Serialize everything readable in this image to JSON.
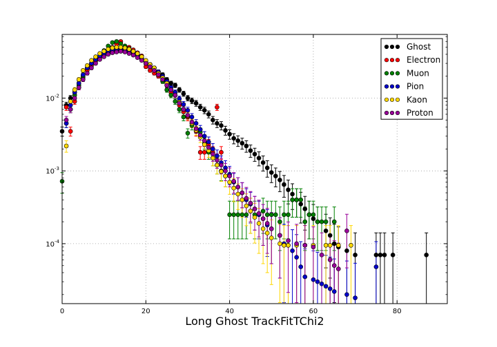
{
  "chart_data": {
    "type": "scatter",
    "title": "",
    "xlabel": "Long Ghost TrackFitTChi2",
    "ylabel": "",
    "xlim": [
      0,
      92
    ],
    "ylim": [
      1.5e-05,
      0.075
    ],
    "yscale": "log",
    "grid": true,
    "legend_position": "top-right",
    "x_ticks": [
      {
        "value": 0,
        "label": "0"
      },
      {
        "value": 20,
        "label": "20"
      },
      {
        "value": 40,
        "label": "40"
      },
      {
        "value": 60,
        "label": "60"
      },
      {
        "value": 80,
        "label": "80"
      }
    ],
    "y_ticks": [
      {
        "value": 0.0001,
        "base": "10",
        "exp": "-4"
      },
      {
        "value": 0.001,
        "base": "10",
        "exp": "-3"
      },
      {
        "value": 0.01,
        "base": "10",
        "exp": "-2"
      }
    ],
    "series": [
      {
        "name": "Ghost",
        "color": "#000000",
        "x": [
          0,
          1,
          2,
          3,
          4,
          5,
          6,
          7,
          8,
          9,
          10,
          11,
          12,
          13,
          14,
          15,
          16,
          17,
          18,
          19,
          20,
          21,
          22,
          23,
          24,
          25,
          26,
          27,
          28,
          29,
          30,
          31,
          32,
          33,
          34,
          35,
          36,
          37,
          38,
          39,
          40,
          41,
          42,
          43,
          44,
          45,
          46,
          47,
          48,
          49,
          50,
          51,
          52,
          53,
          54,
          55,
          56,
          57,
          58,
          59,
          60,
          61,
          63,
          64,
          65,
          66,
          68,
          70,
          75,
          76,
          77,
          79,
          87
        ],
        "y": [
          0.0035,
          0.008,
          0.01,
          0.012,
          0.016,
          0.02,
          0.025,
          0.028,
          0.033,
          0.037,
          0.04,
          0.043,
          0.045,
          0.046,
          0.047,
          0.046,
          0.044,
          0.042,
          0.039,
          0.035,
          0.032,
          0.029,
          0.026,
          0.023,
          0.021,
          0.018,
          0.016,
          0.015,
          0.013,
          0.0115,
          0.01,
          0.0092,
          0.0085,
          0.0075,
          0.0068,
          0.006,
          0.005,
          0.0045,
          0.0042,
          0.0036,
          0.0032,
          0.0028,
          0.0026,
          0.0024,
          0.0022,
          0.0019,
          0.0017,
          0.0015,
          0.0013,
          0.0011,
          0.00095,
          0.00085,
          0.00075,
          0.00065,
          0.00055,
          0.00048,
          0.0004,
          0.00035,
          0.0003,
          0.00025,
          0.00022,
          0.0002,
          0.00015,
          0.00013,
          0.0001,
          9e-05,
          8e-05,
          7e-05,
          7e-05,
          7e-05,
          7e-05,
          7e-05,
          7e-05
        ]
      },
      {
        "name": "Electron",
        "color": "#ff0000",
        "x": [
          1,
          2,
          3,
          4,
          5,
          6,
          7,
          8,
          9,
          10,
          11,
          12,
          13,
          14,
          15,
          16,
          17,
          18,
          19,
          20,
          21,
          22,
          23,
          24,
          25,
          26,
          27,
          28,
          29,
          30,
          31,
          32,
          33,
          34,
          35,
          36,
          37,
          38
        ],
        "y": [
          0.0075,
          0.0035,
          0.009,
          0.014,
          0.019,
          0.024,
          0.028,
          0.032,
          0.036,
          0.039,
          0.044,
          0.05,
          0.055,
          0.06,
          0.052,
          0.05,
          0.046,
          0.042,
          0.038,
          0.027,
          0.024,
          0.022,
          0.02,
          0.018,
          0.015,
          0.012,
          0.011,
          0.008,
          0.0065,
          0.0055,
          0.0045,
          0.0035,
          0.0018,
          0.0018,
          0.0023,
          0.0018,
          0.0075,
          0.0018
        ]
      },
      {
        "name": "Muon",
        "color": "#008000",
        "x": [
          0,
          1,
          2,
          3,
          4,
          5,
          6,
          7,
          8,
          9,
          10,
          11,
          12,
          13,
          14,
          15,
          16,
          17,
          18,
          19,
          20,
          21,
          22,
          23,
          24,
          25,
          26,
          27,
          28,
          29,
          30,
          31,
          32,
          33,
          34,
          35,
          36,
          37,
          38,
          39,
          40,
          41,
          42,
          43,
          44,
          45,
          46,
          47,
          48,
          49,
          50,
          51,
          52,
          53,
          54,
          55,
          56,
          57,
          58,
          59,
          60,
          61,
          62,
          63,
          65
        ],
        "y": [
          0.00072,
          0.0045,
          0.007,
          0.011,
          0.015,
          0.02,
          0.026,
          0.03,
          0.035,
          0.04,
          0.045,
          0.052,
          0.058,
          0.06,
          0.056,
          0.052,
          0.048,
          0.044,
          0.04,
          0.036,
          0.03,
          0.027,
          0.024,
          0.021,
          0.017,
          0.013,
          0.011,
          0.009,
          0.007,
          0.0055,
          0.0033,
          0.0042,
          0.0038,
          0.0034,
          0.0024,
          0.0018,
          0.0015,
          0.0012,
          0.001,
          0.00085,
          0.00025,
          0.00025,
          0.00025,
          0.00025,
          0.00025,
          0.00028,
          0.00025,
          0.00025,
          0.00028,
          0.00025,
          0.00025,
          0.00025,
          0.0002,
          0.00025,
          0.00025,
          0.0004,
          0.0004,
          0.0004,
          0.0002,
          0.00025,
          0.00025,
          0.0002,
          0.0002,
          0.0002,
          0.0002
        ]
      },
      {
        "name": "Pion",
        "color": "#0000cc",
        "x": [
          1,
          2,
          3,
          4,
          5,
          6,
          7,
          8,
          9,
          10,
          11,
          12,
          13,
          14,
          15,
          16,
          17,
          18,
          19,
          20,
          21,
          22,
          23,
          24,
          25,
          26,
          27,
          28,
          29,
          30,
          31,
          32,
          33,
          34,
          35,
          36,
          37,
          38,
          39,
          40,
          41,
          42,
          43,
          44,
          45,
          46,
          47,
          48,
          49,
          50,
          52,
          53,
          54,
          55,
          56,
          57,
          58,
          60,
          61,
          62,
          63,
          64,
          65,
          68,
          70,
          75
        ],
        "y": [
          0.0045,
          0.008,
          0.012,
          0.016,
          0.021,
          0.026,
          0.03,
          0.034,
          0.038,
          0.041,
          0.044,
          0.046,
          0.047,
          0.047,
          0.046,
          0.044,
          0.042,
          0.039,
          0.036,
          0.032,
          0.029,
          0.026,
          0.023,
          0.02,
          0.017,
          0.014,
          0.012,
          0.0098,
          0.0082,
          0.0068,
          0.0055,
          0.0045,
          0.0037,
          0.003,
          0.0025,
          0.002,
          0.0016,
          0.0013,
          0.0011,
          0.0009,
          0.0007,
          0.0006,
          0.0005,
          0.0004,
          0.00035,
          0.0003,
          0.00025,
          0.00022,
          0.00018,
          0.00016,
          0.00013,
          0.0001,
          9.5e-05,
          8e-05,
          6.5e-05,
          4.8e-05,
          3.5e-05,
          3.2e-05,
          3e-05,
          2.8e-05,
          2.6e-05,
          2.4e-05,
          2.2e-05,
          2e-05,
          1.8e-05,
          4.8e-05
        ]
      },
      {
        "name": "Kaon",
        "color": "#ffd700",
        "x": [
          1,
          2,
          3,
          4,
          5,
          6,
          7,
          8,
          9,
          10,
          11,
          12,
          13,
          14,
          15,
          16,
          17,
          18,
          19,
          20,
          21,
          22,
          23,
          24,
          25,
          26,
          27,
          28,
          29,
          30,
          31,
          32,
          33,
          34,
          35,
          36,
          37,
          38,
          39,
          40,
          41,
          42,
          43,
          44,
          45,
          46,
          47,
          48,
          49,
          50,
          52,
          53,
          54,
          56,
          58,
          60,
          63,
          64,
          66,
          69
        ],
        "y": [
          0.0022,
          0.009,
          0.013,
          0.018,
          0.024,
          0.028,
          0.033,
          0.037,
          0.041,
          0.044,
          0.047,
          0.049,
          0.05,
          0.05,
          0.049,
          0.047,
          0.044,
          0.041,
          0.037,
          0.033,
          0.029,
          0.026,
          0.022,
          0.019,
          0.016,
          0.013,
          0.011,
          0.0088,
          0.007,
          0.0057,
          0.0045,
          0.0036,
          0.0029,
          0.0023,
          0.0019,
          0.0015,
          0.0012,
          0.00098,
          0.00085,
          0.0007,
          0.00058,
          0.00048,
          0.0004,
          0.00033,
          0.00028,
          0.00023,
          0.00019,
          0.00016,
          0.00014,
          0.00012,
          0.0001,
          9.5e-05,
          9.5e-05,
          9.5e-05,
          9.5e-05,
          9.5e-05,
          9.5e-05,
          9.5e-05,
          9.5e-05,
          9.5e-05
        ]
      },
      {
        "name": "Proton",
        "color": "#990099",
        "x": [
          1,
          2,
          3,
          4,
          5,
          6,
          7,
          8,
          9,
          10,
          11,
          12,
          13,
          14,
          15,
          16,
          17,
          18,
          19,
          20,
          21,
          22,
          23,
          24,
          25,
          26,
          27,
          28,
          29,
          30,
          31,
          32,
          33,
          34,
          35,
          36,
          37,
          38,
          39,
          40,
          41,
          42,
          43,
          44,
          45,
          46,
          47,
          48,
          49,
          50,
          52,
          54,
          56,
          58,
          60,
          62,
          64,
          65,
          66,
          68
        ],
        "y": [
          0.005,
          0.007,
          0.01,
          0.014,
          0.018,
          0.022,
          0.026,
          0.03,
          0.034,
          0.037,
          0.04,
          0.042,
          0.043,
          0.044,
          0.043,
          0.041,
          0.039,
          0.036,
          0.033,
          0.03,
          0.027,
          0.024,
          0.021,
          0.018,
          0.015,
          0.013,
          0.011,
          0.0085,
          0.007,
          0.0058,
          0.0047,
          0.0038,
          0.0031,
          0.0026,
          0.0021,
          0.0017,
          0.0014,
          0.0012,
          0.001,
          0.00085,
          0.00072,
          0.0006,
          0.0005,
          0.00042,
          0.00036,
          0.0003,
          0.00026,
          0.00022,
          0.00019,
          0.00016,
          0.00013,
          0.00011,
          0.0001,
          9.5e-05,
          9e-05,
          7e-05,
          6e-05,
          5e-05,
          4.5e-05,
          0.00015
        ]
      }
    ]
  }
}
